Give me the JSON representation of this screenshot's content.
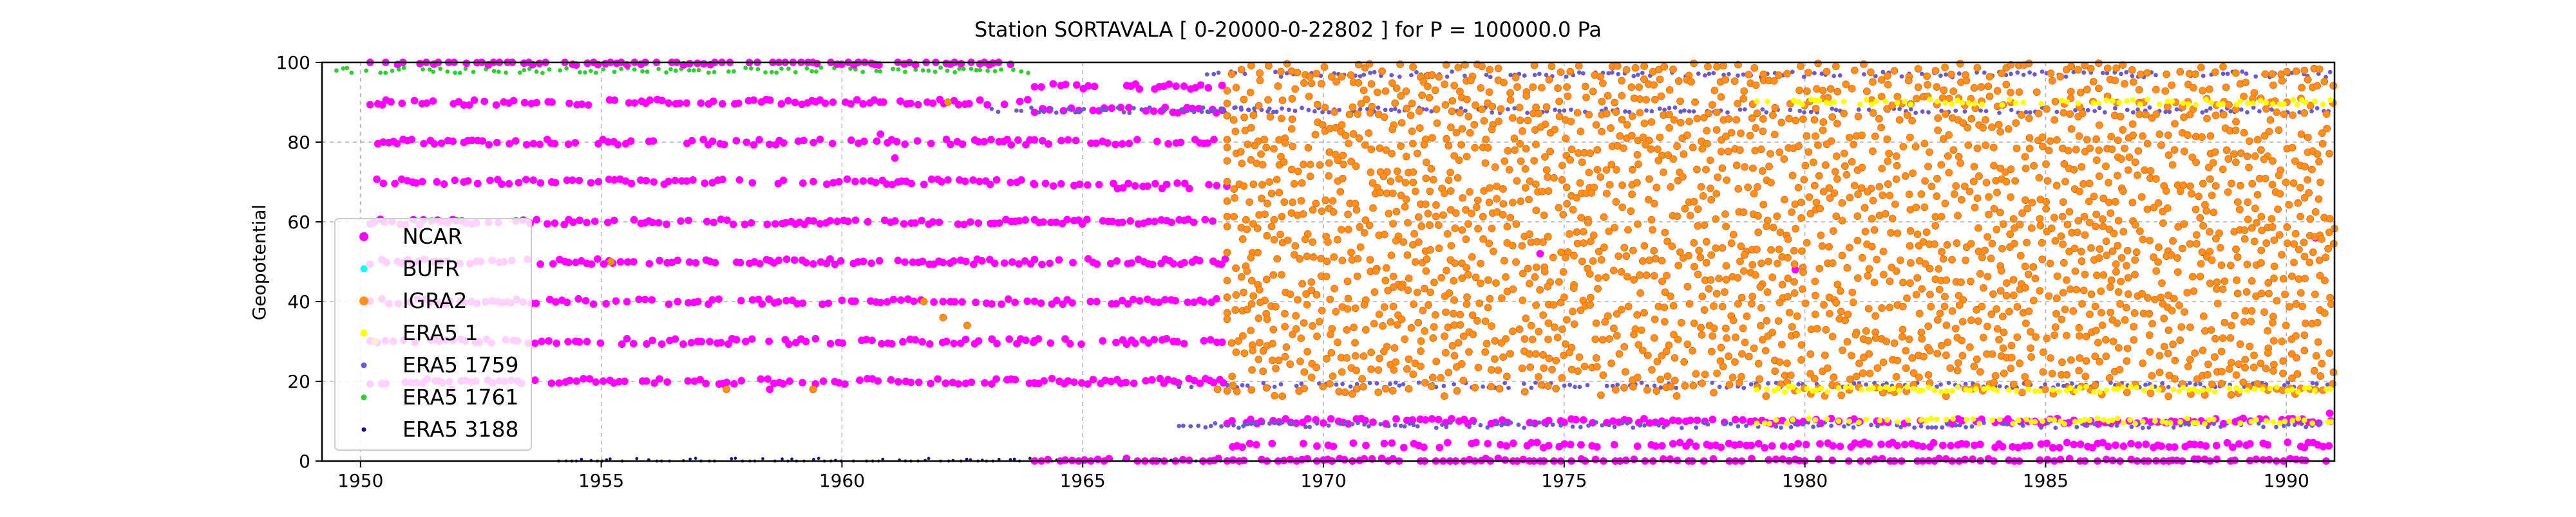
{
  "chart_data": {
    "type": "scatter",
    "title": "Station  SORTAVALA [ 0-20000-0-22802 ]  for P = 100000.0 Pa",
    "xlabel": "",
    "ylabel": "Geopotential",
    "xlim": [
      1949.2,
      1991.0
    ],
    "ylim": [
      0,
      100
    ],
    "xticks": [
      1950,
      1955,
      1960,
      1965,
      1970,
      1975,
      1980,
      1985,
      1990
    ],
    "yticks": [
      0,
      20,
      40,
      60,
      80,
      100
    ],
    "grid": true,
    "legend_position": "lower-left",
    "series": [
      {
        "name": "NCAR",
        "color": "#ff00ff",
        "marker_size": "large",
        "bands": [
          {
            "x_range": [
              1950.2,
              1964.0
            ],
            "y": [
              100,
              90,
              80,
              70,
              60,
              50,
              40,
              30,
              20
            ]
          },
          {
            "x_range": [
              1964.0,
              1968.0
            ],
            "y": [
              94,
              88,
              80,
              69,
              60,
              50,
              40,
              30,
              20,
              0
            ]
          },
          {
            "x_range": [
              1968.0,
              1991.0
            ],
            "y": [
              10,
              4,
              0
            ]
          }
        ],
        "points": [
          [
            1960.8,
            82
          ],
          [
            1961.1,
            76
          ],
          [
            1951.9,
            18
          ],
          [
            1958.5,
            18
          ],
          [
            1974.5,
            52
          ],
          [
            1979.8,
            48
          ],
          [
            1990.6,
            56
          ],
          [
            1990.9,
            12
          ]
        ]
      },
      {
        "name": "BUFR",
        "color": "#00ffff",
        "marker_size": "medium",
        "bands": [],
        "points": []
      },
      {
        "name": "IGRA2",
        "color": "#ff9020",
        "marker_size": "large",
        "bands": [
          {
            "x_range": [
              1968.0,
              1991.0
            ],
            "y": [
              98,
              94,
              90,
              86,
              82,
              78,
              74,
              70,
              66,
              62,
              58,
              54,
              50,
              46,
              42,
              38,
              34,
              30,
              26,
              22,
              18
            ]
          }
        ],
        "points": [
          [
            1961.7,
            40
          ],
          [
            1962.1,
            36
          ],
          [
            1962.6,
            34
          ],
          [
            1957.6,
            18
          ],
          [
            1959.4,
            18
          ],
          [
            1950.3,
            30
          ],
          [
            1955.2,
            50
          ],
          [
            1962.2,
            90
          ],
          [
            1967.8,
            18
          ]
        ]
      },
      {
        "name": "ERA5 1",
        "color": "#ffff00",
        "marker_size": "medium",
        "bands": [
          {
            "x_range": [
              1979.0,
              1991.0
            ],
            "y": [
              90,
              18,
              10
            ]
          }
        ],
        "points": []
      },
      {
        "name": "ERA5 1759",
        "color": "#6a5acd",
        "marker_size": "small",
        "bands": [
          {
            "x_range": [
              1963.0,
              1969.0
            ],
            "y": [
              88
            ]
          },
          {
            "x_range": [
              1967.5,
              1991.0
            ],
            "y": [
              97,
              88
            ]
          },
          {
            "x_range": [
              1967.0,
              1991.0
            ],
            "y": [
              19,
              9
            ]
          }
        ],
        "points": []
      },
      {
        "name": "ERA5 1761",
        "color": "#32cd32",
        "marker_size": "small",
        "bands": [
          {
            "x_range": [
              1949.5,
              1964.0
            ],
            "y": [
              98
            ]
          }
        ],
        "points": []
      },
      {
        "name": "ERA5 3188",
        "color": "#191970",
        "marker_size": "tiny",
        "bands": [
          {
            "x_range": [
              1954.0,
              1968.0
            ],
            "y": [
              0
            ]
          }
        ],
        "points": []
      }
    ]
  }
}
